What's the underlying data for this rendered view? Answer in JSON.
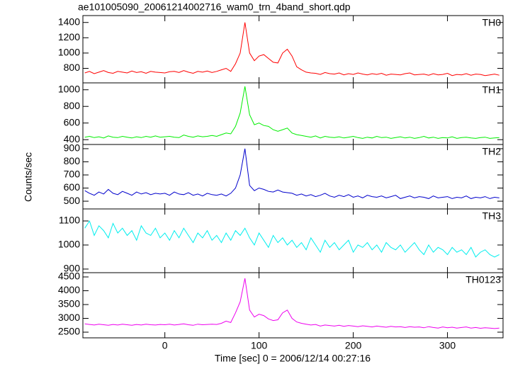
{
  "chart_data": {
    "type": "line",
    "title": "ae101005090_20061214002716_wam0_trn_4band_short.qdp",
    "xlabel": "Time [sec] 0 = 2006/12/14 00:27:16",
    "ylabel": "Counts/sec",
    "xlim": [
      -87,
      359
    ],
    "xticks": [
      0,
      100,
      200,
      300
    ],
    "x": [
      -85,
      -80,
      -75,
      -70,
      -65,
      -60,
      -55,
      -50,
      -45,
      -40,
      -35,
      -30,
      -25,
      -20,
      -15,
      -10,
      -5,
      0,
      5,
      10,
      15,
      20,
      25,
      30,
      35,
      40,
      45,
      50,
      55,
      60,
      65,
      70,
      75,
      80,
      85,
      90,
      95,
      100,
      105,
      110,
      115,
      120,
      125,
      130,
      135,
      140,
      145,
      150,
      155,
      160,
      165,
      170,
      175,
      180,
      185,
      190,
      195,
      200,
      205,
      210,
      215,
      220,
      225,
      230,
      235,
      240,
      245,
      250,
      255,
      260,
      265,
      270,
      275,
      280,
      285,
      290,
      295,
      300,
      305,
      310,
      315,
      320,
      325,
      330,
      335,
      340,
      345,
      350,
      355
    ],
    "series": [
      {
        "name": "TH0",
        "color": "#ff0000",
        "ylim": [
          610,
          1490
        ],
        "yticks": [
          800,
          1000,
          1200,
          1400
        ],
        "values": [
          740,
          760,
          730,
          750,
          770,
          745,
          735,
          760,
          750,
          740,
          765,
          745,
          755,
          735,
          760,
          750,
          745,
          740,
          755,
          760,
          745,
          770,
          750,
          735,
          760,
          750,
          765,
          745,
          760,
          780,
          800,
          760,
          860,
          1000,
          1400,
          1000,
          900,
          960,
          980,
          930,
          880,
          870,
          1000,
          1050,
          960,
          820,
          780,
          750,
          740,
          735,
          720,
          745,
          730,
          725,
          740,
          715,
          730,
          720,
          740,
          725,
          715,
          730,
          720,
          735,
          710,
          725,
          720,
          715,
          730,
          740,
          715,
          720,
          725,
          710,
          730,
          715,
          720,
          735,
          705,
          720,
          715,
          730,
          710,
          725,
          720,
          705,
          715,
          725,
          710
        ]
      },
      {
        "name": "TH1",
        "color": "#00ee00",
        "ylim": [
          342,
          1083
        ],
        "yticks": [
          400,
          600,
          800,
          1000
        ],
        "values": [
          430,
          440,
          425,
          435,
          420,
          445,
          430,
          425,
          440,
          430,
          420,
          435,
          425,
          440,
          430,
          445,
          430,
          435,
          440,
          430,
          425,
          455,
          440,
          430,
          445,
          435,
          440,
          450,
          440,
          460,
          480,
          470,
          560,
          720,
          1040,
          700,
          580,
          600,
          570,
          560,
          520,
          500,
          520,
          540,
          480,
          460,
          450,
          440,
          430,
          445,
          420,
          440,
          430,
          425,
          435,
          420,
          430,
          440,
          425,
          415,
          430,
          420,
          440,
          425,
          430,
          415,
          425,
          435,
          420,
          430,
          415,
          425,
          440,
          420,
          430,
          415,
          425,
          420,
          435,
          415,
          425,
          430,
          420,
          415,
          425,
          430,
          415,
          420,
          425
        ]
      },
      {
        "name": "TH2",
        "color": "#0000cc",
        "ylim": [
          441,
          932
        ],
        "yticks": [
          500,
          600,
          700,
          800,
          900
        ],
        "values": [
          580,
          560,
          545,
          570,
          555,
          590,
          560,
          550,
          575,
          560,
          545,
          570,
          555,
          565,
          550,
          560,
          555,
          560,
          545,
          570,
          555,
          550,
          565,
          545,
          555,
          540,
          560,
          550,
          545,
          555,
          540,
          560,
          600,
          700,
          900,
          620,
          580,
          600,
          590,
          575,
          570,
          585,
          570,
          565,
          560,
          545,
          555,
          540,
          550,
          535,
          545,
          560,
          540,
          530,
          545,
          535,
          550,
          530,
          540,
          525,
          545,
          535,
          530,
          540,
          525,
          535,
          545,
          520,
          530,
          540,
          525,
          535,
          530,
          520,
          540,
          525,
          530,
          535,
          520,
          530,
          525,
          540,
          520,
          530,
          525,
          535,
          520,
          530,
          525
        ]
      },
      {
        "name": "TH3",
        "color": "#00eeee",
        "ylim": [
          885,
          1150
        ],
        "yticks": [
          900,
          1000,
          1100
        ],
        "values": [
          1070,
          1100,
          1040,
          1080,
          1060,
          1030,
          1090,
          1050,
          1070,
          1040,
          1060,
          1020,
          1080,
          1050,
          1040,
          1070,
          1030,
          1050,
          1020,
          1060,
          1030,
          1070,
          1040,
          1010,
          1050,
          1030,
          1060,
          1020,
          1040,
          1010,
          1050,
          1020,
          1060,
          1040,
          1070,
          1030,
          1000,
          1050,
          1020,
          990,
          1040,
          1010,
          1030,
          1000,
          1020,
          990,
          1010,
          980,
          1030,
          1000,
          970,
          1020,
          990,
          1010,
          980,
          1000,
          1020,
          970,
          1000,
          990,
          1010,
          980,
          1000,
          970,
          1010,
          990,
          980,
          1000,
          970,
          990,
          1010,
          980,
          960,
          1000,
          970,
          990,
          980,
          960,
          990,
          970,
          980,
          960,
          990,
          950,
          970,
          980,
          960,
          950,
          960
        ]
      },
      {
        "name": "TH0123",
        "color": "#ee00ee",
        "ylim": [
          2295,
          4654
        ],
        "yticks": [
          2500,
          3000,
          3500,
          4000,
          4500
        ],
        "values": [
          2800,
          2780,
          2760,
          2790,
          2770,
          2750,
          2780,
          2760,
          2790,
          2770,
          2750,
          2780,
          2760,
          2790,
          2770,
          2760,
          2780,
          2770,
          2790,
          2760,
          2780,
          2800,
          2770,
          2750,
          2790,
          2770,
          2780,
          2790,
          2780,
          2820,
          2900,
          2850,
          3200,
          3600,
          4450,
          3300,
          3050,
          3150,
          3100,
          2980,
          2920,
          2950,
          3200,
          3300,
          3000,
          2870,
          2820,
          2790,
          2760,
          2780,
          2720,
          2760,
          2740,
          2720,
          2750,
          2710,
          2740,
          2720,
          2700,
          2730,
          2710,
          2690,
          2720,
          2700,
          2680,
          2710,
          2690,
          2700,
          2670,
          2700,
          2680,
          2690,
          2660,
          2700,
          2670,
          2650,
          2690,
          2660,
          2680,
          2650,
          2670,
          2690,
          2650,
          2670,
          2640,
          2660,
          2650,
          2630,
          2650
        ]
      }
    ]
  }
}
